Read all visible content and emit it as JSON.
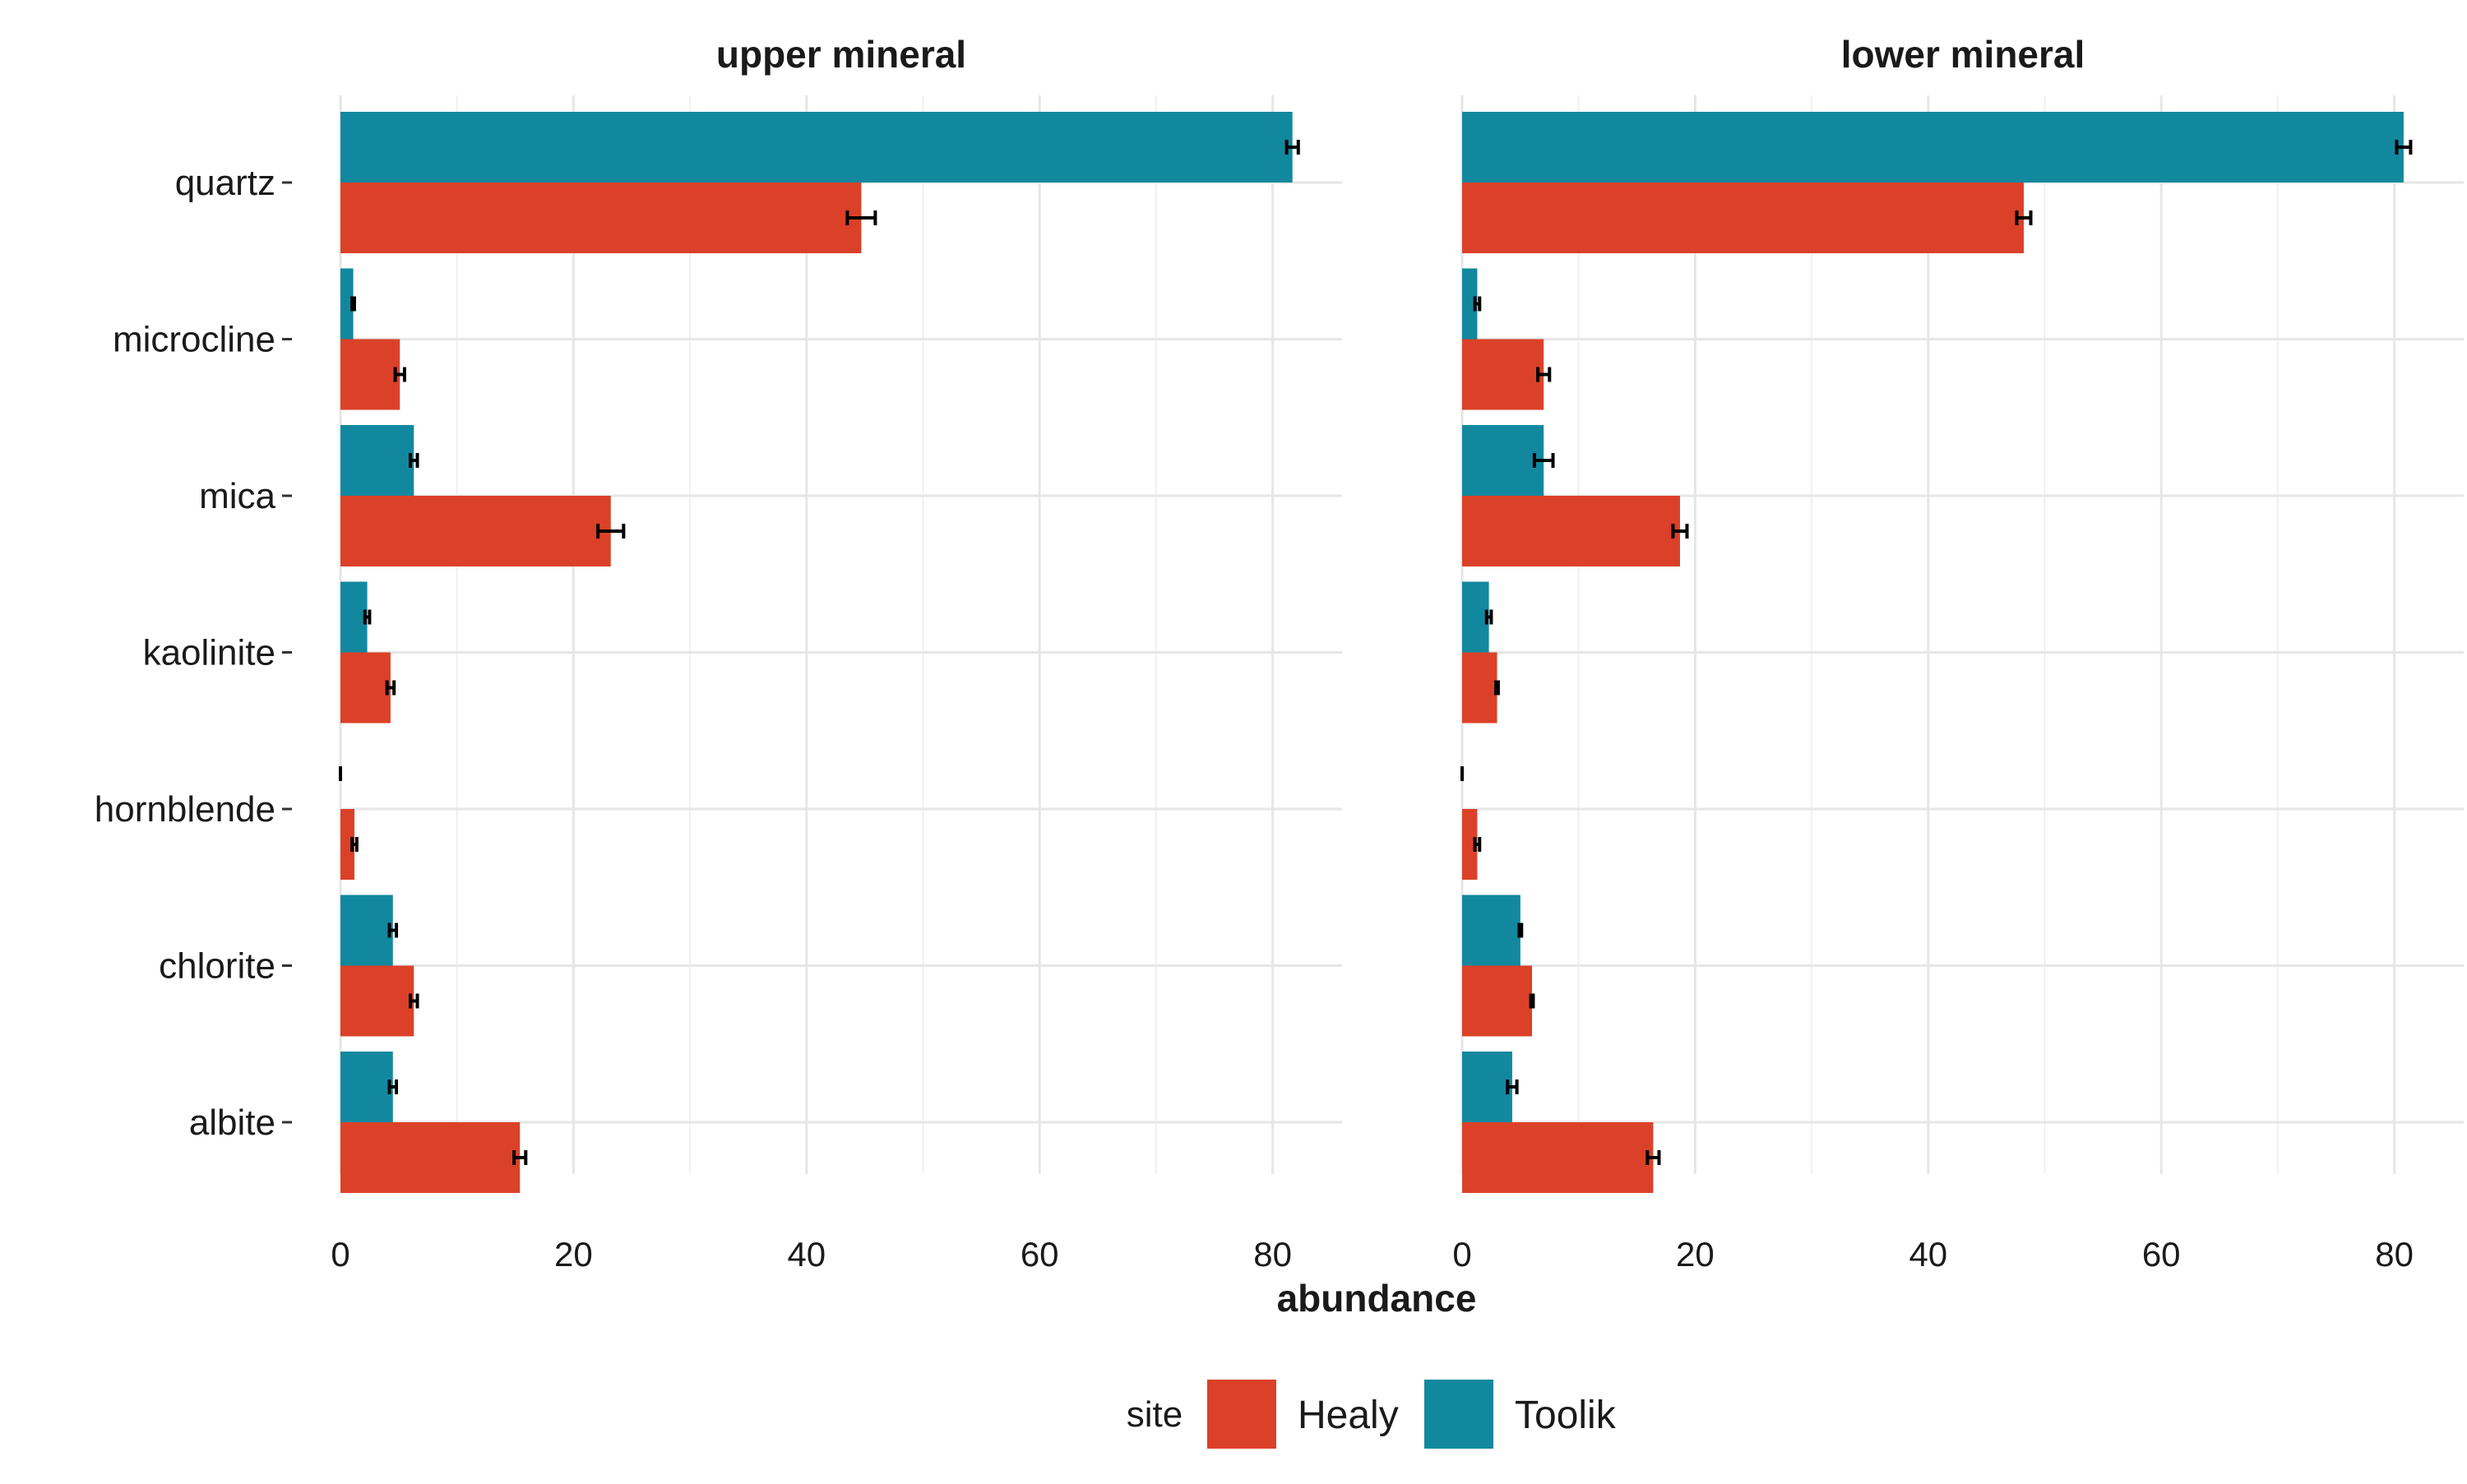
{
  "chart_data": {
    "type": "bar",
    "orientation": "horizontal",
    "xlabel": "abundance",
    "xlim": [
      0,
      86
    ],
    "x_ticks": [
      0,
      20,
      40,
      60,
      80
    ],
    "grid": true,
    "legend": {
      "title": "site",
      "placement": "bottom"
    },
    "categories": [
      "quartz",
      "microcline",
      "mica",
      "kaolinite",
      "hornblende",
      "chlorite",
      "albite"
    ],
    "series_order": [
      "Toolik",
      "Healy"
    ],
    "colors": {
      "Healy": "#DB4128",
      "Toolik": "#12889F"
    },
    "legend_entries": [
      {
        "name": "Healy",
        "color": "#DB4128"
      },
      {
        "name": "Toolik",
        "color": "#12889F"
      }
    ],
    "panels": [
      {
        "title": "upper mineral",
        "series": [
          {
            "name": "Toolik",
            "values": [
              81.7,
              1.1,
              6.3,
              2.3,
              0.0,
              4.5,
              4.5
            ],
            "errors": [
              0.5,
              0.1,
              0.3,
              0.2,
              0.0,
              0.3,
              0.3
            ]
          },
          {
            "name": "Healy",
            "values": [
              44.7,
              5.1,
              23.2,
              4.3,
              1.2,
              6.3,
              15.4
            ],
            "errors": [
              1.2,
              0.4,
              1.1,
              0.3,
              0.2,
              0.3,
              0.5
            ]
          }
        ]
      },
      {
        "title": "lower mineral",
        "series": [
          {
            "name": "Toolik",
            "values": [
              80.8,
              1.3,
              7.0,
              2.3,
              0.0,
              5.0,
              4.3
            ],
            "errors": [
              0.6,
              0.2,
              0.8,
              0.2,
              0.0,
              0.1,
              0.4
            ]
          },
          {
            "name": "Healy",
            "values": [
              48.2,
              7.0,
              18.7,
              3.0,
              1.3,
              6.0,
              16.4
            ],
            "errors": [
              0.6,
              0.5,
              0.6,
              0.1,
              0.2,
              0.1,
              0.5
            ]
          }
        ]
      }
    ]
  }
}
